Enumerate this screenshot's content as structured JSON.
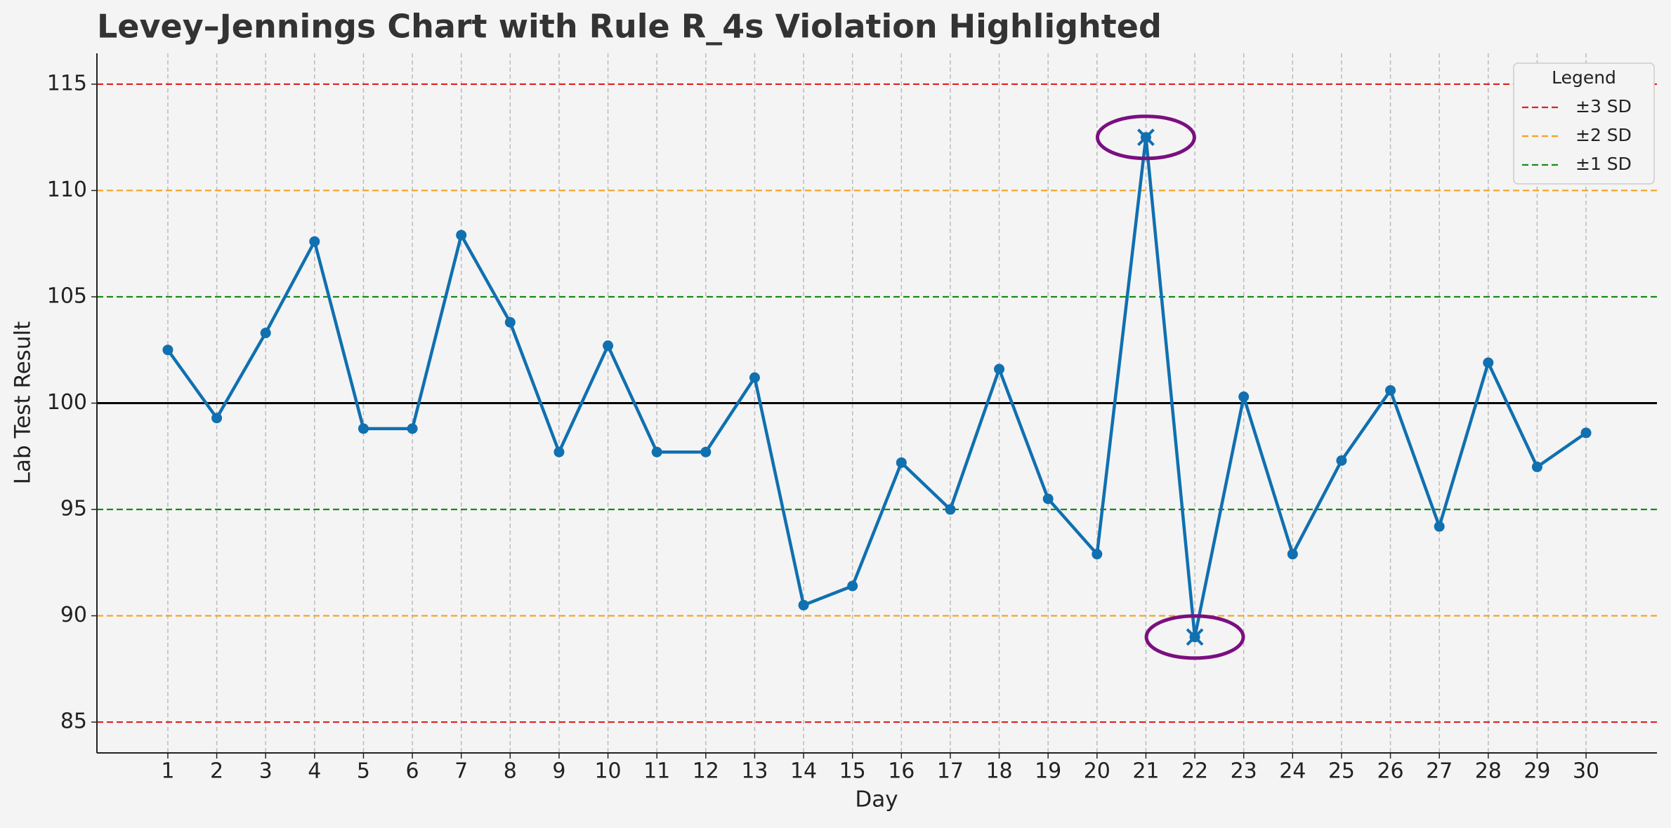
{
  "chart_data": {
    "type": "line",
    "title": "Levey–Jennings Chart with Rule R_4s Violation Highlighted",
    "x_label": "Day",
    "y_label": "Lab Test Result",
    "x": [
      1,
      2,
      3,
      4,
      5,
      6,
      7,
      8,
      9,
      10,
      11,
      12,
      13,
      14,
      15,
      16,
      17,
      18,
      19,
      20,
      21,
      22,
      23,
      24,
      25,
      26,
      27,
      28,
      29,
      30
    ],
    "series": [
      {
        "color": "#1070b0",
        "values": [
          102.5,
          99.3,
          103.3,
          107.6,
          98.8,
          98.8,
          107.9,
          103.8,
          97.7,
          102.7,
          97.7,
          97.7,
          101.2,
          90.5,
          91.4,
          97.2,
          95.0,
          101.6,
          95.5,
          92.9,
          112.5,
          89.0,
          100.3,
          92.9,
          97.3,
          100.6,
          94.2,
          101.9,
          97.0,
          98.6
        ]
      }
    ],
    "center_line": {
      "value": 100,
      "color": "#000000"
    },
    "reference_lines": [
      {
        "name": "±3 SD",
        "color": "#e02020",
        "values": [
          85,
          115
        ]
      },
      {
        "name": "±2 SD",
        "color": "#f5a020",
        "values": [
          90,
          110
        ]
      },
      {
        "name": "±1 SD",
        "color": "#1a8a1a",
        "values": [
          95,
          105
        ]
      }
    ],
    "violation_days": [
      21,
      22
    ],
    "violation_color": "#7a0f80",
    "xlim": [
      -0.45,
      31.45
    ],
    "ylim": [
      83.55,
      116.45
    ],
    "xticks": [
      1,
      2,
      3,
      4,
      5,
      6,
      7,
      8,
      9,
      10,
      11,
      12,
      13,
      14,
      15,
      16,
      17,
      18,
      19,
      20,
      21,
      22,
      23,
      24,
      25,
      26,
      27,
      28,
      29,
      30
    ],
    "yticks": [
      85,
      90,
      95,
      100,
      105,
      110,
      115
    ],
    "grid": "x",
    "legend": {
      "title": "Legend",
      "loc": "upper right"
    }
  }
}
